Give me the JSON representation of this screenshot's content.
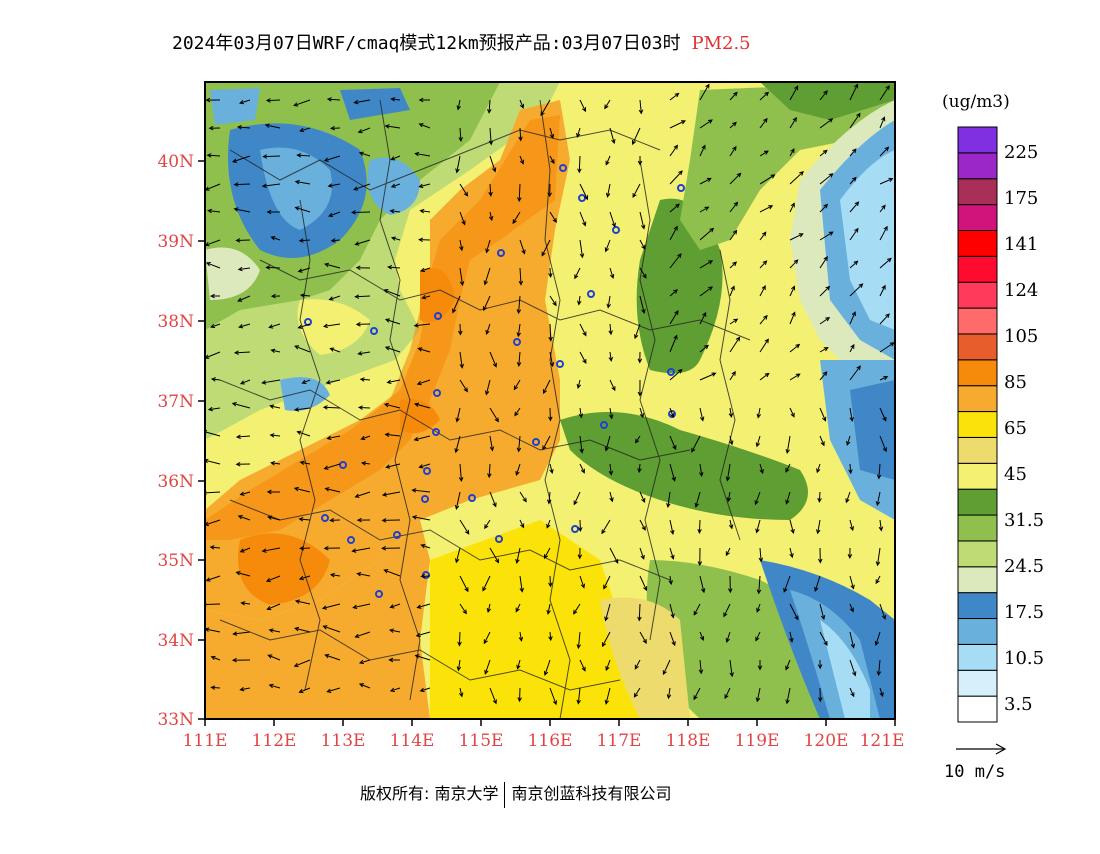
{
  "header": {
    "title": "2024年03月07日WRF/cmaq模式12km预报产品:03月07日03时",
    "pollutant": "PM2.5"
  },
  "map": {
    "lat_labels": [
      "40N",
      "39N",
      "38N",
      "37N",
      "36N",
      "35N",
      "34N",
      "33N"
    ],
    "lon_labels": [
      "111E",
      "112E",
      "113E",
      "114E",
      "115E",
      "116E",
      "117E",
      "118E",
      "119E",
      "120E",
      "121E"
    ],
    "colors": {
      "axis_label": "#e04545",
      "level_3_5": "#ffffff",
      "level_10_5": "#daf0fc",
      "level_17_5": "#a7dcf5",
      "level_24_5": "#6aaedc",
      "level_31_5": "#3f87c6"
    }
  },
  "colorbar": {
    "unit": "(ug/m3)",
    "levels": [
      "225",
      "175",
      "141",
      "124",
      "105",
      "85",
      "65",
      "45",
      "31.5",
      "24.5",
      "17.5",
      "10.5",
      "3.5"
    ],
    "colors": [
      "#ffffff",
      "#d7eefb",
      "#a7dcf5",
      "#6ab0dd",
      "#3f87c6",
      "#dce9bc",
      "#bedb76",
      "#8fc04e",
      "#5e9e32",
      "#f3f072",
      "#eddb6e",
      "#fbe30a",
      "#f7ab2e",
      "#f68a0b",
      "#e85d2c",
      "#ff6a6a",
      "#ff3a5a",
      "#ff0b30",
      "#ff0000",
      "#d0147c",
      "#a83058",
      "#9b27c8",
      "#8030e0"
    ]
  },
  "wind_reference": {
    "label": "10 m/s"
  },
  "footer": {
    "copyright_prefix": "版权所有: 南京大学",
    "copyright_company": "南京创蓝科技有限公司"
  }
}
